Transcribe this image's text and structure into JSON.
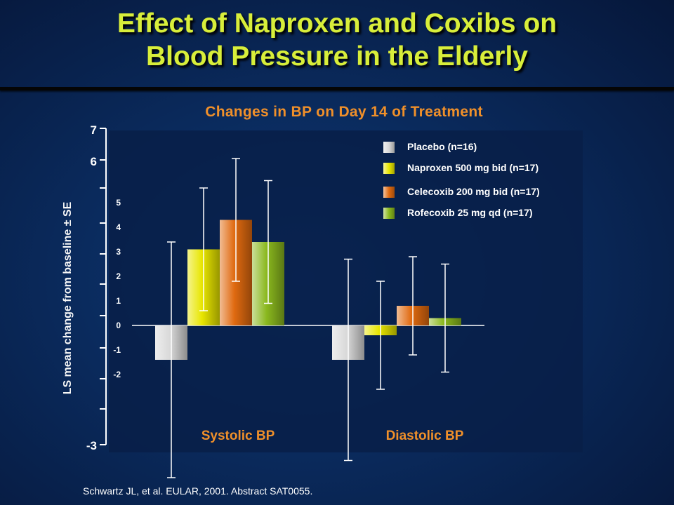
{
  "title_line1": "Effect of Naproxen and Coxibs on",
  "title_line2": "Blood Pressure in the Elderly",
  "citation": "Schwartz JL, et al. EULAR, 2001. Abstract SAT0055.",
  "colors": {
    "title": "#d8ee3a",
    "subtitle": "#f0902a",
    "plot_bg": "#081f48",
    "placebo": "#d9d9d9",
    "naproxen": "#e8e600",
    "celecoxib": "#e06a10",
    "rofecoxib": "#8ab81e"
  },
  "chart_data": {
    "type": "bar",
    "title": "Changes in BP on Day 14 of Treatment",
    "ylabel": "LS mean change from baseline ± SE",
    "categories": [
      "Systolic BP",
      "Diastolic BP"
    ],
    "outer_ticks": [
      "7",
      "6",
      "-3"
    ],
    "inner_ticks": [
      "5",
      "4",
      "3",
      "2",
      "1",
      "0",
      "-1",
      "-2"
    ],
    "ylim": [
      -3,
      7
    ],
    "legend_position": "top-right",
    "series": [
      {
        "name": "Placebo (n=16)",
        "values": [
          -1.4,
          -1.4
        ],
        "errors": [
          4.8,
          4.1
        ],
        "color_key": "placebo"
      },
      {
        "name": "Naproxen 500 mg bid (n=17)",
        "values": [
          3.1,
          -0.4
        ],
        "errors": [
          2.5,
          2.2
        ],
        "color_key": "naproxen"
      },
      {
        "name": "Celecoxib 200 mg bid (n=17)",
        "values": [
          4.3,
          0.8
        ],
        "errors": [
          2.5,
          2.0
        ],
        "color_key": "celecoxib"
      },
      {
        "name": "Rofecoxib 25 mg qd (n=17)",
        "values": [
          3.4,
          0.3
        ],
        "errors": [
          2.5,
          2.2
        ],
        "color_key": "rofecoxib"
      }
    ]
  }
}
